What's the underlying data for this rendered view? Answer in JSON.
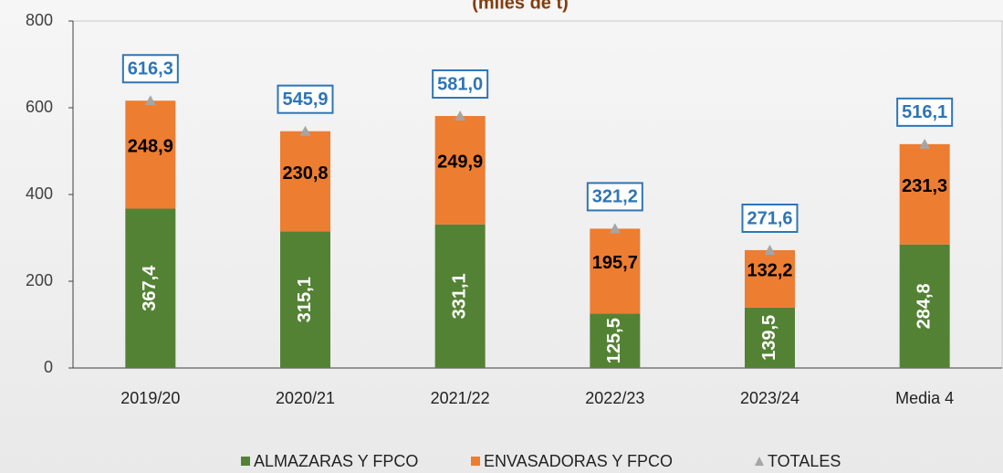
{
  "chart_data": {
    "type": "bar",
    "stacked": true,
    "title": "(miles de t)",
    "categories": [
      "2019/20",
      "2020/21",
      "2021/22",
      "2022/23",
      "2023/24",
      "Media 4"
    ],
    "series": [
      {
        "name": "ALMAZARAS Y FPCO",
        "color": "#548235",
        "values": [
          367.4,
          315.1,
          331.1,
          125.5,
          139.5,
          284.8
        ],
        "value_labels": [
          "367,4",
          "315,1",
          "331,1",
          "125,5",
          "139,5",
          "284,8"
        ]
      },
      {
        "name": "ENVASADORAS Y FPCO",
        "color": "#ed7d31",
        "values": [
          248.9,
          230.8,
          249.9,
          195.7,
          132.2,
          231.3
        ],
        "value_labels": [
          "248,9",
          "230,8",
          "249,9",
          "195,7",
          "132,2",
          "231,3"
        ]
      },
      {
        "name": "TOTALES",
        "type": "scatter",
        "color": "#a5a5a5",
        "values": [
          616.3,
          545.9,
          581.0,
          321.2,
          271.6,
          516.1
        ],
        "value_labels": [
          "616,3",
          "545,9",
          "581,0",
          "321,2",
          "271,6",
          "516,1"
        ]
      }
    ],
    "ylim": [
      0,
      800
    ],
    "yticks": [
      0,
      200,
      400,
      600,
      800
    ],
    "grid": false,
    "legend": "bottom"
  }
}
